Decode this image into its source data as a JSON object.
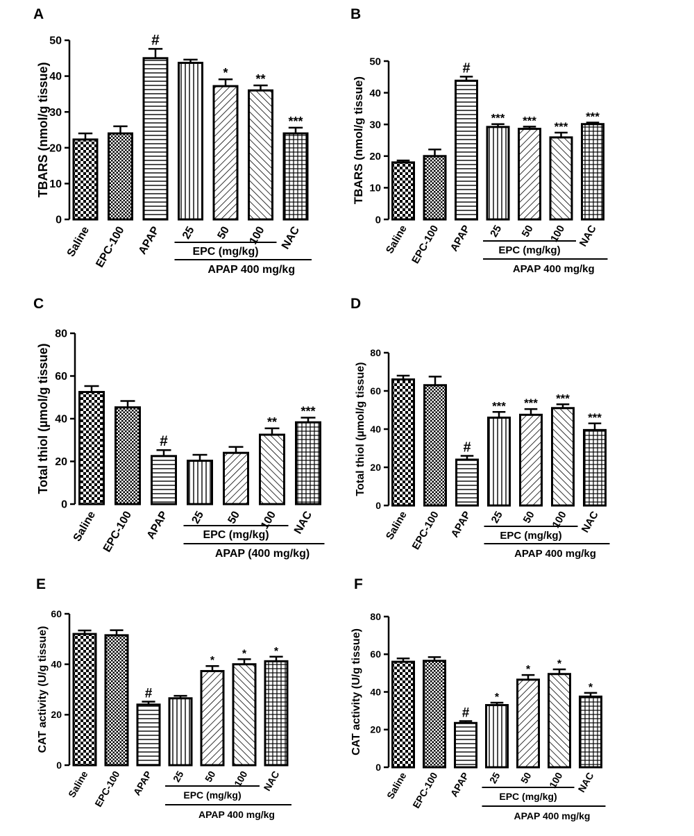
{
  "chart_data": [
    {
      "panel": "A",
      "type": "bar",
      "ylabel": "TBARS (nmol/g tissue)",
      "ylim": [
        0,
        50
      ],
      "yticks": [
        0,
        10,
        20,
        30,
        40,
        50
      ],
      "categories": [
        "Saline",
        "EPC-100",
        "APAP",
        "25",
        "50",
        "100",
        "NAC"
      ],
      "values": [
        22.3,
        24.0,
        45.0,
        43.7,
        37.2,
        36.0,
        24.0
      ],
      "errors": [
        1.7,
        2.0,
        2.6,
        0.9,
        1.9,
        1.4,
        1.6
      ],
      "annotations": [
        "",
        "",
        "#",
        "",
        "*",
        "**",
        "***"
      ],
      "group_labels": {
        "epc": "EPC (mg/kg)",
        "apap": "APAP 400 mg/kg"
      }
    },
    {
      "panel": "B",
      "type": "bar",
      "ylabel": "TBARS (nmol/g tissue)",
      "ylim": [
        0,
        50
      ],
      "yticks": [
        0,
        10,
        20,
        30,
        40,
        50
      ],
      "categories": [
        "Saline",
        "EPC-100",
        "APAP",
        "25",
        "50",
        "100",
        "NAC"
      ],
      "values": [
        18.0,
        20.0,
        43.8,
        29.2,
        28.6,
        25.9,
        30.1
      ],
      "errors": [
        0.6,
        2.1,
        1.3,
        0.9,
        0.7,
        1.5,
        0.5
      ],
      "annotations": [
        "",
        "",
        "#",
        "***",
        "***",
        "***",
        "***"
      ],
      "group_labels": {
        "epc": "EPC (mg/kg)",
        "apap": "APAP 400 mg/kg"
      }
    },
    {
      "panel": "C",
      "type": "bar",
      "ylabel": "Total thiol (µmol/g tissue)",
      "ylim": [
        0,
        80
      ],
      "yticks": [
        0,
        20,
        40,
        60,
        80
      ],
      "categories": [
        "Saline",
        "EPC-100",
        "APAP",
        "25",
        "50",
        "100",
        "NAC"
      ],
      "values": [
        52.5,
        45.3,
        22.5,
        20.3,
        24.0,
        32.5,
        38.3
      ],
      "errors": [
        2.8,
        3.0,
        2.8,
        2.8,
        2.8,
        3.0,
        2.2
      ],
      "annotations": [
        "",
        "",
        "#",
        "",
        "",
        "**",
        "***"
      ],
      "group_labels": {
        "epc": "EPC (mg/kg)",
        "apap": "APAP (400 mg/kg)"
      }
    },
    {
      "panel": "D",
      "type": "bar",
      "ylabel": "Total thiol (µmol/g tissue)",
      "ylim": [
        0,
        80
      ],
      "yticks": [
        0,
        20,
        40,
        60,
        80
      ],
      "categories": [
        "Saline",
        "EPC-100",
        "APAP",
        "25",
        "50",
        "100",
        "NAC"
      ],
      "values": [
        66.0,
        63.0,
        24.0,
        46.0,
        47.5,
        51.0,
        39.5
      ],
      "errors": [
        2.0,
        4.5,
        2.0,
        3.0,
        3.0,
        2.0,
        3.5
      ],
      "annotations": [
        "",
        "",
        "#",
        "***",
        "***",
        "***",
        "***"
      ],
      "group_labels": {
        "epc": "EPC (mg/kg)",
        "apap": "APAP 400 mg/kg"
      }
    },
    {
      "panel": "E",
      "type": "bar",
      "ylabel": "CAT activity (U/g tissue)",
      "ylim": [
        0,
        60
      ],
      "yticks": [
        0,
        20,
        40,
        60
      ],
      "categories": [
        "Saline",
        "EPC-100",
        "APAP",
        "25",
        "50",
        "100",
        "NAC"
      ],
      "values": [
        52.0,
        51.5,
        24.0,
        26.5,
        37.3,
        40.0,
        41.2
      ],
      "errors": [
        1.4,
        2.0,
        1.2,
        1.0,
        2.0,
        2.0,
        1.8
      ],
      "annotations": [
        "",
        "",
        "#",
        "",
        "*",
        "*",
        "*"
      ],
      "group_labels": {
        "epc": "EPC (mg/kg)",
        "apap": "APAP 400 mg/kg"
      }
    },
    {
      "panel": "F",
      "type": "bar",
      "ylabel": "CAT activity (U/g tissue)",
      "ylim": [
        0,
        80
      ],
      "yticks": [
        0,
        20,
        40,
        60,
        80
      ],
      "categories": [
        "Saline",
        "EPC-100",
        "APAP",
        "25",
        "50",
        "100",
        "NAC"
      ],
      "values": [
        56.0,
        56.5,
        23.5,
        33.0,
        46.5,
        49.5,
        37.5
      ],
      "errors": [
        1.8,
        2.0,
        1.0,
        1.3,
        2.5,
        2.5,
        2.0
      ],
      "annotations": [
        "",
        "",
        "#",
        "*",
        "*",
        "*",
        "*"
      ],
      "group_labels": {
        "epc": "EPC (mg/kg)",
        "apap": "APAP 400 mg/kg"
      }
    }
  ]
}
